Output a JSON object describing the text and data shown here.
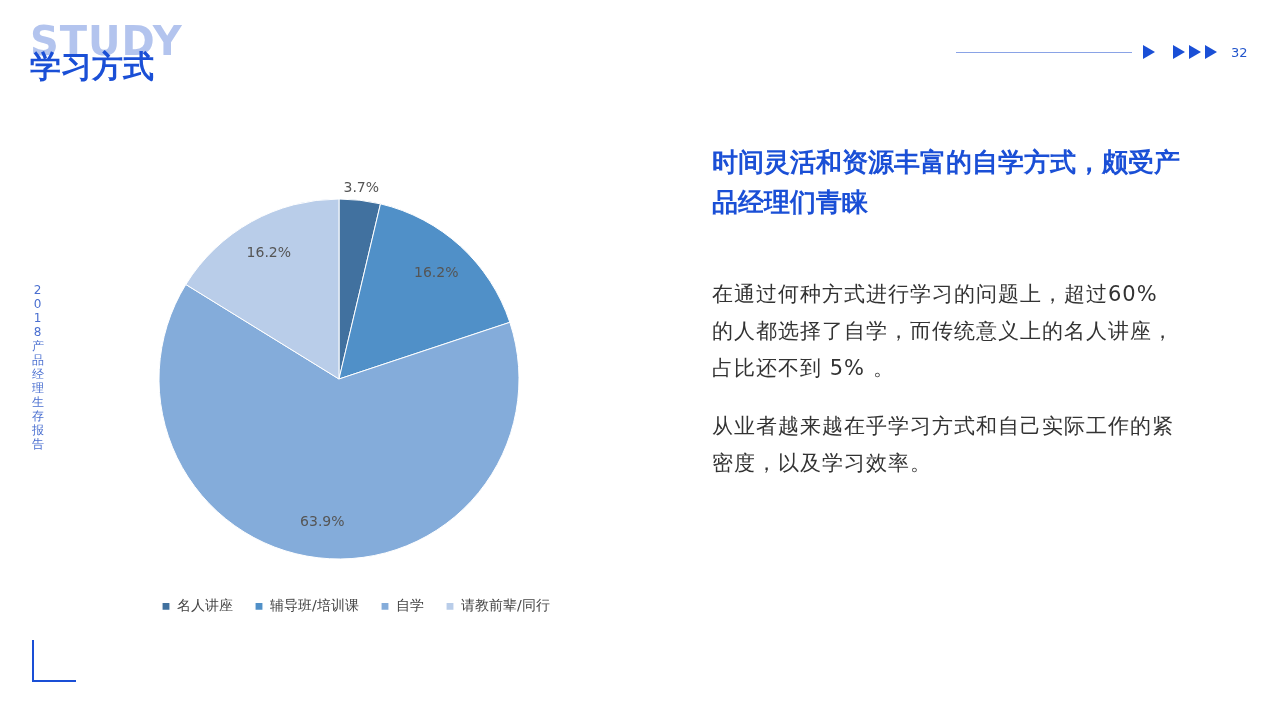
{
  "chart_data": {
    "type": "pie",
    "title": "学习方式",
    "subtitle": "时间灵活和资源丰富的自学方式，颇受产品经理们青睐",
    "categories": [
      "名人讲座",
      "辅导班/培训课",
      "自学",
      "请教前辈/同行"
    ],
    "values": [
      3.7,
      16.2,
      63.9,
      16.2
    ],
    "value_labels": [
      "3.7%",
      "16.2%",
      "63.9%",
      "16.2%"
    ],
    "colors": [
      "#41719f",
      "#5090c8",
      "#84acda",
      "#b9cde9"
    ],
    "legend": "bottom",
    "annotations": [
      "STUDY",
      "在通过何种方式进行学习的问题上，超过60% 的人都选择了自学，而传统意义上的名人讲座，占比还不到 5% 。",
      "从业者越来越在乎学习方式和自己实际工作的紧密度，以及学习效率。",
      "2018产品经理生存报告",
      "32"
    ]
  }
}
